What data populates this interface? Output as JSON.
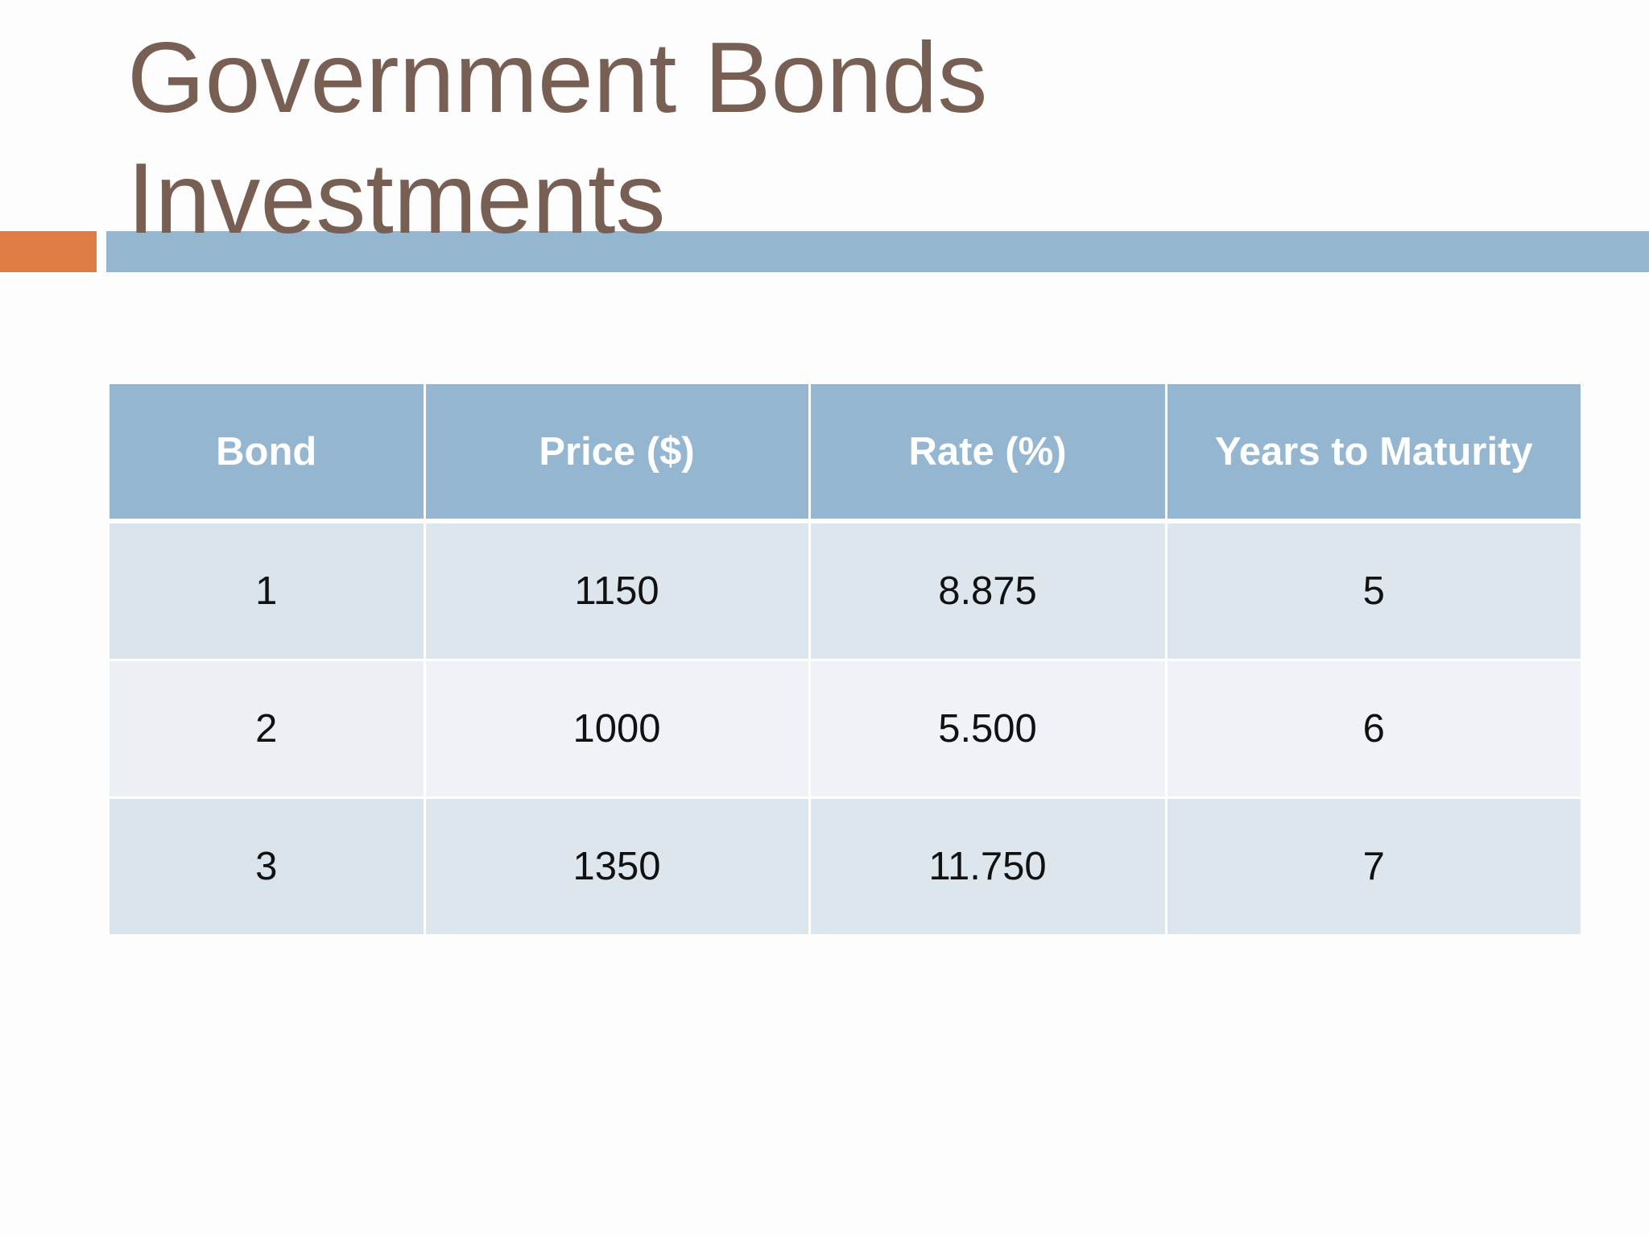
{
  "slide": {
    "title": "Government Bonds Investments"
  },
  "table": {
    "headers": [
      "Bond",
      "Price ($)",
      "Rate (%)",
      "Years to Maturity"
    ],
    "rows": [
      [
        "1",
        "1150",
        "8.875",
        "5"
      ],
      [
        "2",
        "1000",
        "5.500",
        "6"
      ],
      [
        "3",
        "1350",
        "11.750",
        "7"
      ]
    ]
  },
  "colors": {
    "title": "#785f54",
    "accent_orange": "#de7e46",
    "accent_blue": "#94b6cf",
    "header_fill": "#94b6d0"
  }
}
